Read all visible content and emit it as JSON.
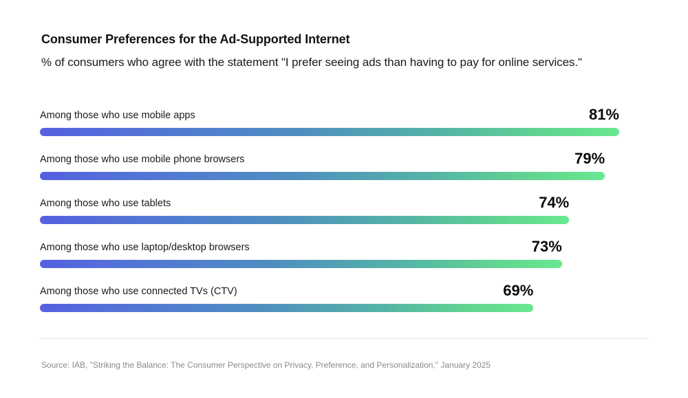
{
  "chart_data": {
    "type": "bar",
    "orientation": "horizontal",
    "title": "Consumer Preferences for the Ad-Supported Internet",
    "subtitle": "% of consumers who agree with the statement \"I prefer seeing ads than having to pay for online services.\"",
    "categories": [
      "Among those who use mobile apps",
      "Among those who use mobile phone browsers",
      "Among those who use tablets",
      "Among those who use laptop/desktop browsers",
      "Among those who use connected TVs (CTV)"
    ],
    "values": [
      81,
      79,
      74,
      73,
      69
    ],
    "value_labels": [
      "81%",
      "79%",
      "74%",
      "73%",
      "69%"
    ],
    "unit": "%",
    "xlabel": "",
    "ylabel": "",
    "grid": false,
    "legend": "none",
    "gradient_colors": [
      "#5560e0",
      "#68e890"
    ],
    "source": "Source: IAB, \"Striking the Balance: The Consumer Perspective on Privacy, Preference, and Personalization,\" January 2025"
  }
}
